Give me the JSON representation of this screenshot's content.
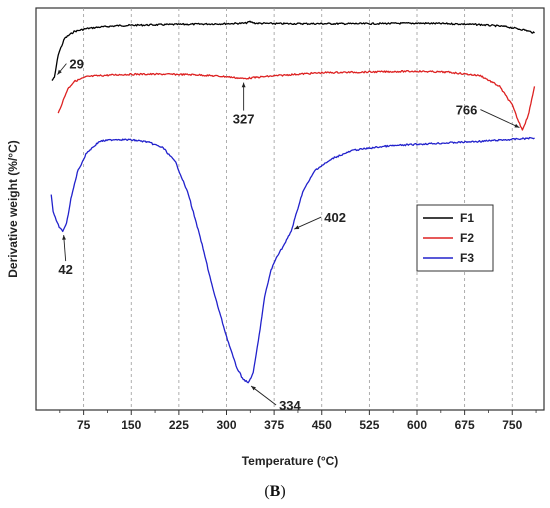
{
  "panel_label": {
    "open": "(",
    "letter": "B",
    "close": ")"
  },
  "chart_data": {
    "type": "line",
    "xlabel": "Temperature (°C)",
    "ylabel": "Derivative weight (%/°C)",
    "xlim": [
      0,
      800
    ],
    "x_ticks": [
      75,
      150,
      225,
      300,
      375,
      450,
      525,
      600,
      675,
      750
    ],
    "y_tick_labels_shown": false,
    "grid": {
      "vertical_dashed": true,
      "horizontal": false
    },
    "legend_position": "center-right",
    "series": [
      {
        "name": "F1",
        "color": "#000000",
        "x": [
          25,
          29,
          35,
          45,
          60,
          80,
          100,
          130,
          160,
          200,
          250,
          300,
          330,
          337,
          345,
          380,
          450,
          525,
          600,
          650,
          700,
          740,
          770,
          785
        ],
        "y": [
          1.12,
          1.18,
          1.65,
          1.98,
          2.12,
          2.18,
          2.21,
          2.24,
          2.25,
          2.26,
          2.27,
          2.28,
          2.29,
          2.32,
          2.29,
          2.28,
          2.28,
          2.28,
          2.29,
          2.28,
          2.26,
          2.22,
          2.15,
          2.09
        ]
      },
      {
        "name": "F2",
        "color": "#dd2222",
        "x": [
          35,
          40,
          50,
          60,
          80,
          100,
          130,
          160,
          200,
          250,
          300,
          327,
          360,
          400,
          450,
          500,
          550,
          600,
          650,
          700,
          730,
          750,
          760,
          766,
          775,
          785
        ],
        "y": [
          0.45,
          0.62,
          0.95,
          1.1,
          1.2,
          1.22,
          1.24,
          1.25,
          1.25,
          1.24,
          1.2,
          1.16,
          1.2,
          1.24,
          1.28,
          1.29,
          1.3,
          1.31,
          1.29,
          1.22,
          1.0,
          0.62,
          0.28,
          0.12,
          0.4,
          1.0
        ]
      },
      {
        "name": "F3",
        "color": "#2222cc",
        "x": [
          24,
          27,
          32,
          38,
          42,
          48,
          55,
          65,
          80,
          100,
          125,
          150,
          175,
          200,
          220,
          240,
          260,
          280,
          300,
          315,
          325,
          334,
          342,
          350,
          360,
          370,
          380,
          390,
          402,
          420,
          440,
          470,
          500,
          550,
          600,
          650,
          700,
          750,
          785
        ],
        "y": [
          -1.2,
          -1.55,
          -1.75,
          -1.9,
          -1.95,
          -1.8,
          -1.3,
          -0.75,
          -0.35,
          -0.12,
          -0.08,
          -0.09,
          -0.13,
          -0.25,
          -0.55,
          -1.2,
          -2.15,
          -3.2,
          -4.1,
          -4.7,
          -4.95,
          -5.05,
          -4.85,
          -4.2,
          -3.3,
          -2.75,
          -2.45,
          -2.25,
          -1.95,
          -1.15,
          -0.7,
          -0.45,
          -0.3,
          -0.22,
          -0.18,
          -0.15,
          -0.12,
          -0.08,
          -0.05
        ]
      }
    ],
    "annotations": [
      {
        "label": "29",
        "x": 29,
        "y": 1.18,
        "series": "F1"
      },
      {
        "label": "327",
        "x": 327,
        "y": 1.16,
        "series": "F2"
      },
      {
        "label": "766",
        "x": 766,
        "y": 0.12,
        "series": "F2"
      },
      {
        "label": "42",
        "x": 42,
        "y": -1.95,
        "series": "F3"
      },
      {
        "label": "334",
        "x": 334,
        "y": -5.05,
        "series": "F3"
      },
      {
        "label": "402",
        "x": 402,
        "y": -1.95,
        "series": "F3"
      }
    ]
  }
}
